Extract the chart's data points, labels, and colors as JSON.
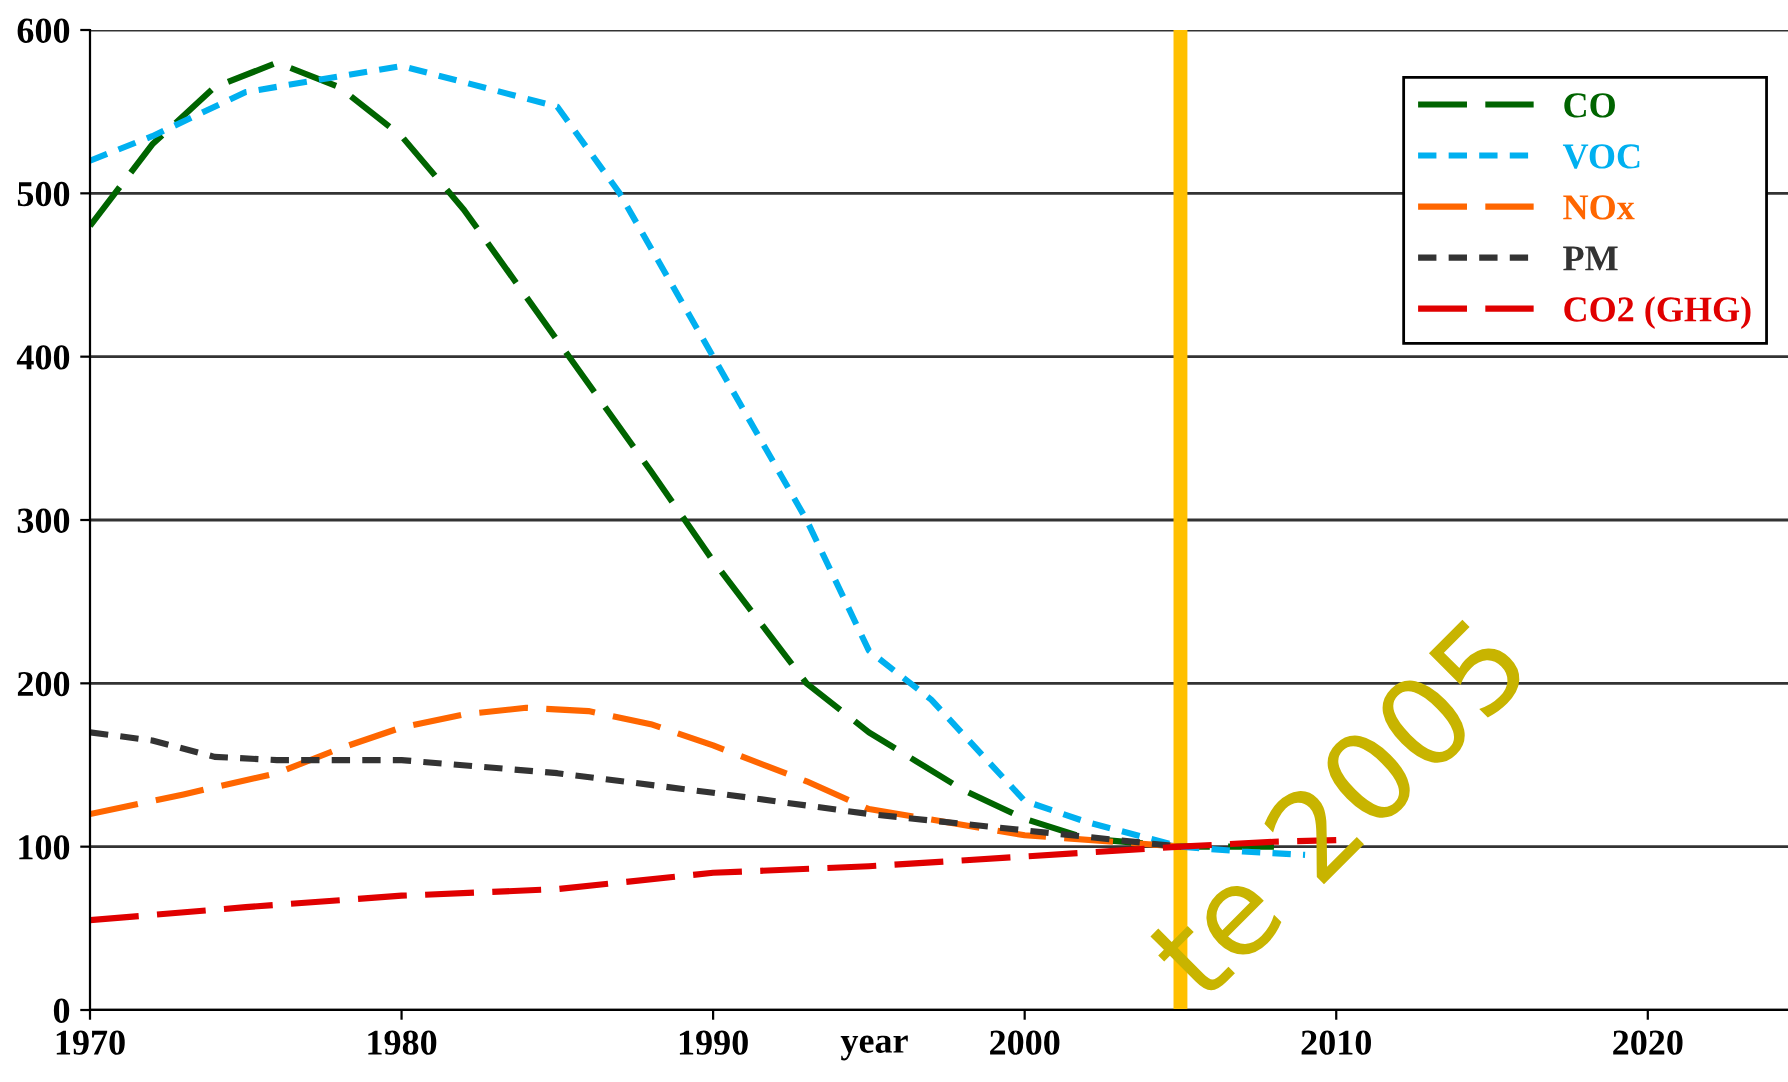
{
  "chart_data": {
    "type": "line",
    "xlabel": "year",
    "xlim": [
      1970,
      2024.5
    ],
    "xticks": [
      1970,
      1980,
      1990,
      2000,
      2010,
      2020
    ],
    "ylim": [
      0,
      600
    ],
    "yticks": [
      0,
      100,
      200,
      300,
      400,
      500,
      600
    ],
    "grid": "y",
    "legend": "top right",
    "series": [
      {
        "name": "CO",
        "color": "#006400",
        "line_style": "dashed",
        "x": [
          1970,
          1972,
          1974,
          1976,
          1978,
          1980,
          1982,
          1985,
          1988,
          1990,
          1993,
          1995,
          1998,
          2000,
          2002,
          2005,
          2008
        ],
        "values": [
          480,
          530,
          565,
          580,
          565,
          535,
          490,
          410,
          330,
          275,
          200,
          170,
          135,
          117,
          105,
          100,
          100
        ]
      },
      {
        "name": "VOC",
        "color": "#00b0f0",
        "line_style": "dotted",
        "x": [
          1970,
          1972,
          1975,
          1980,
          1985,
          1987,
          1990,
          1993,
          1995,
          1997,
          2000,
          2002,
          2005,
          2007,
          2009
        ],
        "values": [
          520,
          535,
          562,
          578,
          553,
          500,
          400,
          300,
          220,
          190,
          128,
          115,
          100,
          97,
          95
        ]
      },
      {
        "name": "NOx",
        "color": "#ff6600",
        "line_style": "dashed",
        "x": [
          1970,
          1973,
          1976,
          1978,
          1980,
          1982,
          1984,
          1986,
          1988,
          1990,
          1993,
          1995,
          2000,
          2005
        ],
        "values": [
          120,
          132,
          145,
          160,
          173,
          181,
          185,
          183,
          175,
          162,
          140,
          123,
          107,
          100
        ]
      },
      {
        "name": "PM",
        "color": "#333333",
        "line_style": "dotted",
        "x": [
          1970,
          1972,
          1974,
          1976,
          1980,
          1985,
          1990,
          1995,
          2000,
          2005
        ],
        "values": [
          170,
          165,
          155,
          153,
          153,
          145,
          133,
          120,
          110,
          100
        ]
      },
      {
        "name": "CO2 (GHG)",
        "color": "#e00000",
        "line_style": "dashed",
        "x": [
          1970,
          1975,
          1980,
          1985,
          1990,
          1995,
          2000,
          2005,
          2008,
          2010
        ],
        "values": [
          55,
          63,
          70,
          74,
          84,
          88,
          94,
          100,
          103,
          104
        ]
      }
    ],
    "ref_lines": [
      {
        "axis": "x",
        "value": 2005,
        "color": "#ffc000",
        "line_style": "solid"
      }
    ],
    "annotations": [
      "te 2005"
    ]
  }
}
